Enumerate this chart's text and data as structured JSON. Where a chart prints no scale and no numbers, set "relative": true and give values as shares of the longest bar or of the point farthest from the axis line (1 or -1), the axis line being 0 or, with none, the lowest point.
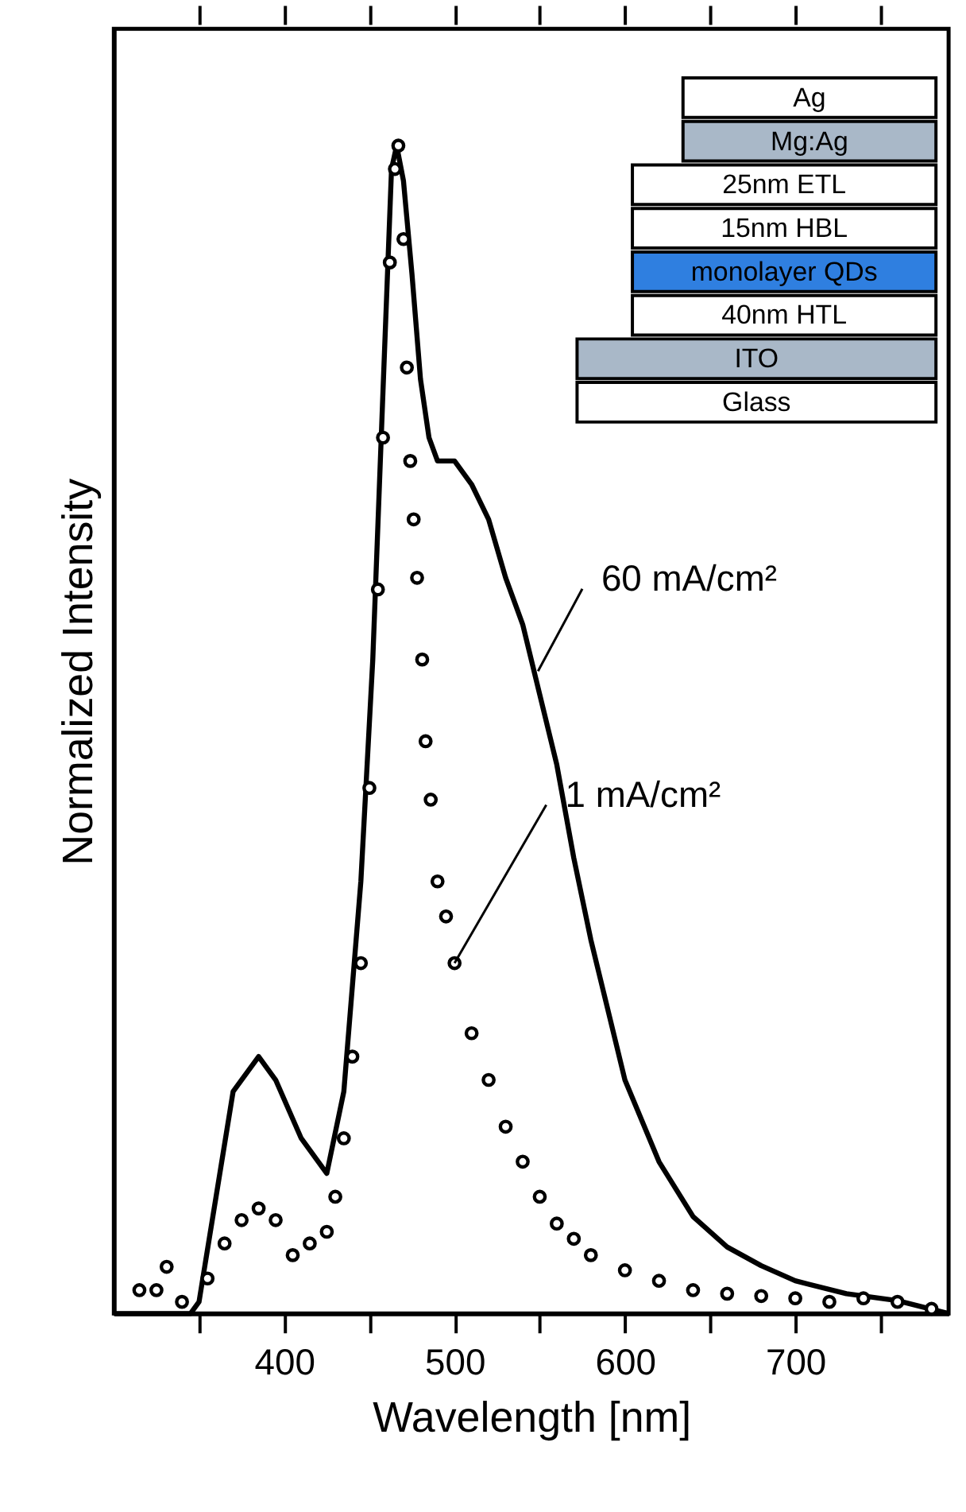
{
  "chart_data": {
    "type": "line",
    "relative": true,
    "xlabel": "Wavelength [nm]",
    "ylabel": "Normalized Intensity",
    "xlim": [
      300,
      790
    ],
    "xticks": [
      {
        "value": 350,
        "label": null
      },
      400,
      {
        "value": 450,
        "label": null
      },
      500,
      {
        "value": 550,
        "label": null
      },
      600,
      {
        "value": 650,
        "label": null
      },
      700,
      {
        "value": 750,
        "label": null
      }
    ],
    "grid": false,
    "series": [
      {
        "color": "#000000",
        "line_style": "solid",
        "marker": "none",
        "x": [
          300,
          320,
          345,
          350,
          360,
          370,
          385,
          395,
          410,
          425,
          435,
          445,
          452,
          458,
          463,
          466,
          470,
          475,
          480,
          485,
          490,
          500,
          510,
          520,
          530,
          540,
          550,
          560,
          570,
          580,
          590,
          600,
          620,
          640,
          660,
          680,
          700,
          730,
          760,
          790
        ],
        "values": [
          0,
          0,
          0,
          0.01,
          0.1,
          0.19,
          0.22,
          0.2,
          0.15,
          0.12,
          0.19,
          0.37,
          0.56,
          0.79,
          0.98,
          1.0,
          0.97,
          0.89,
          0.8,
          0.75,
          0.73,
          0.73,
          0.71,
          0.68,
          0.63,
          0.59,
          0.53,
          0.47,
          0.39,
          0.32,
          0.26,
          0.2,
          0.13,
          0.083,
          0.057,
          0.041,
          0.028,
          0.017,
          0.011,
          0
        ]
      },
      {
        "type": "scatter",
        "color": "#000000",
        "marker": "circle",
        "x": [
          315,
          325,
          331,
          340,
          355,
          365,
          375,
          385,
          395,
          405,
          415,
          425,
          430,
          435,
          440,
          445,
          450,
          455,
          458,
          462,
          465,
          467,
          470,
          472,
          474,
          476,
          478,
          481,
          483,
          486,
          490,
          495,
          500,
          510,
          520,
          530,
          540,
          550,
          560,
          570,
          580,
          600,
          620,
          640,
          660,
          680,
          700,
          720,
          740,
          760,
          780
        ],
        "values": [
          0.02,
          0.02,
          0.04,
          0.01,
          0.03,
          0.06,
          0.08,
          0.09,
          0.08,
          0.05,
          0.06,
          0.07,
          0.1,
          0.15,
          0.22,
          0.3,
          0.45,
          0.62,
          0.75,
          0.9,
          0.98,
          1.0,
          0.92,
          0.81,
          0.73,
          0.68,
          0.63,
          0.56,
          0.49,
          0.44,
          0.37,
          0.34,
          0.3,
          0.24,
          0.2,
          0.16,
          0.13,
          0.1,
          0.077,
          0.064,
          0.05,
          0.037,
          0.028,
          0.02,
          0.017,
          0.015,
          0.013,
          0.01,
          0.013,
          0.01,
          0.004
        ]
      }
    ],
    "annotations": [
      {
        "text": "60 mA/cm²",
        "x": 549,
        "y": 0.55
      },
      {
        "text": "1 mA/cm²",
        "x": 500,
        "y": 0.3
      },
      "Ag",
      "Mg:Ag",
      "25nm ETL",
      "15nm HBL",
      "monolayer QDs",
      "40nm HTL",
      "ITO",
      "Glass"
    ]
  }
}
